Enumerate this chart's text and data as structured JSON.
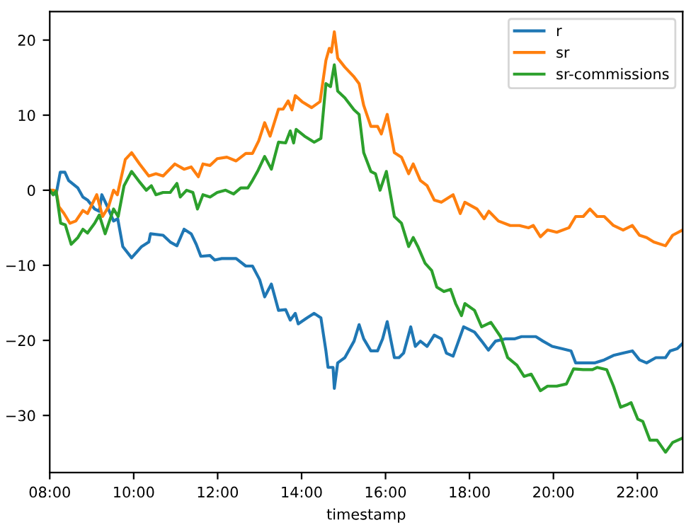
{
  "chart_data": {
    "type": "line",
    "xlabel": "timestamp",
    "legend": "top right",
    "grid": false,
    "xlim": [
      8,
      23.08
    ],
    "ylim": [
      -37.6,
      23.8
    ],
    "xticks": [
      {
        "value": 8,
        "label": "08:00"
      },
      {
        "value": 10,
        "label": "10:00"
      },
      {
        "value": 12,
        "label": "12:00"
      },
      {
        "value": 14,
        "label": "14:00"
      },
      {
        "value": 16,
        "label": "16:00"
      },
      {
        "value": 18,
        "label": "18:00"
      },
      {
        "value": 20,
        "label": "20:00"
      },
      {
        "value": 22,
        "label": "22:00"
      }
    ],
    "yticks": [
      -30,
      -20,
      -10,
      0,
      10,
      20
    ],
    "series": [
      {
        "name": "r",
        "color": "#1f77b4",
        "x": [
          8.0,
          8.15,
          8.25,
          8.36,
          8.45,
          8.67,
          8.79,
          8.9,
          9.07,
          9.18,
          9.24,
          9.35,
          9.52,
          9.62,
          9.74,
          9.95,
          10.19,
          10.36,
          10.4,
          10.7,
          10.87,
          11.03,
          11.2,
          11.37,
          11.49,
          11.6,
          11.82,
          11.93,
          12.1,
          12.44,
          12.67,
          12.83,
          13.0,
          13.12,
          13.28,
          13.45,
          13.62,
          13.73,
          13.85,
          13.92,
          14.13,
          14.3,
          14.46,
          14.58,
          14.63,
          14.75,
          14.78,
          14.86,
          15.03,
          15.25,
          15.37,
          15.48,
          15.65,
          15.81,
          15.93,
          16.04,
          16.21,
          16.32,
          16.43,
          16.6,
          16.71,
          16.83,
          16.99,
          17.16,
          17.33,
          17.45,
          17.61,
          17.86,
          18.12,
          18.29,
          18.45,
          18.62,
          18.85,
          19.07,
          19.24,
          19.41,
          19.58,
          19.75,
          19.97,
          20.2,
          20.42,
          20.53,
          20.76,
          20.98,
          21.21,
          21.43,
          21.66,
          21.88,
          22.05,
          22.22,
          22.44,
          22.67,
          22.78,
          22.95,
          23.08
        ],
        "values": [
          0,
          -0.6,
          2.4,
          2.4,
          1.3,
          0.3,
          -0.9,
          -1.3,
          -2.5,
          -2.8,
          -0.6,
          -1.9,
          -4.1,
          -3.8,
          -7.5,
          -9.0,
          -7.5,
          -6.9,
          -5.8,
          -6.0,
          -6.9,
          -7.4,
          -5.2,
          -5.8,
          -7.2,
          -8.8,
          -8.7,
          -9.3,
          -9.1,
          -9.1,
          -10.1,
          -10.1,
          -11.9,
          -14.2,
          -12.5,
          -16.0,
          -15.9,
          -17.3,
          -16.4,
          -17.8,
          -17.0,
          -16.4,
          -17.0,
          -21.4,
          -23.6,
          -23.6,
          -26.4,
          -23.0,
          -22.3,
          -20.1,
          -17.9,
          -19.8,
          -21.4,
          -21.4,
          -19.8,
          -17.5,
          -22.3,
          -22.3,
          -21.7,
          -18.2,
          -20.8,
          -20.1,
          -20.8,
          -19.3,
          -19.8,
          -21.7,
          -22.1,
          -18.2,
          -18.9,
          -20.1,
          -21.3,
          -20.1,
          -19.8,
          -19.8,
          -19.5,
          -19.5,
          -19.5,
          -20.1,
          -20.8,
          -21.1,
          -21.4,
          -23.0,
          -23.0,
          -23.0,
          -22.6,
          -22.0,
          -21.7,
          -21.4,
          -22.6,
          -23.0,
          -22.3,
          -22.3,
          -21.4,
          -21.1,
          -20.4
        ]
      },
      {
        "name": "sr",
        "color": "#ff7f0e",
        "x": [
          8.0,
          8.08,
          8.15,
          8.22,
          8.34,
          8.48,
          8.62,
          8.79,
          8.9,
          9.12,
          9.26,
          9.4,
          9.52,
          9.61,
          9.8,
          9.95,
          10.14,
          10.36,
          10.53,
          10.7,
          10.98,
          11.2,
          11.37,
          11.54,
          11.65,
          11.82,
          11.99,
          12.22,
          12.44,
          12.67,
          12.83,
          12.98,
          13.12,
          13.25,
          13.45,
          13.56,
          13.68,
          13.77,
          13.85,
          14.01,
          14.24,
          14.44,
          14.58,
          14.66,
          14.71,
          14.78,
          14.86,
          15.03,
          15.25,
          15.37,
          15.48,
          15.65,
          15.81,
          15.9,
          16.04,
          16.21,
          16.38,
          16.55,
          16.66,
          16.83,
          16.99,
          17.16,
          17.33,
          17.61,
          17.78,
          17.89,
          18.18,
          18.35,
          18.46,
          18.69,
          18.97,
          19.19,
          19.41,
          19.52,
          19.69,
          19.86,
          20.08,
          20.37,
          20.53,
          20.71,
          20.87,
          21.04,
          21.21,
          21.43,
          21.66,
          21.88,
          22.05,
          22.22,
          22.39,
          22.67,
          22.84,
          23.08
        ],
        "values": [
          0,
          0,
          -0.1,
          -2.2,
          -3.1,
          -4.4,
          -4.1,
          -2.7,
          -3.1,
          -0.6,
          -3.5,
          -2.2,
          0,
          -0.6,
          4.1,
          5.0,
          3.5,
          1.9,
          2.2,
          1.9,
          3.5,
          2.8,
          3.1,
          1.8,
          3.5,
          3.3,
          4.2,
          4.4,
          3.9,
          4.9,
          4.9,
          6.6,
          9.0,
          7.2,
          10.8,
          10.8,
          11.9,
          10.7,
          12.6,
          11.8,
          11.0,
          11.8,
          17.3,
          18.9,
          18.4,
          21.1,
          17.6,
          16.4,
          15.1,
          14.2,
          11.3,
          8.5,
          8.5,
          7.5,
          10.1,
          5.0,
          4.4,
          2.2,
          3.5,
          1.3,
          0.6,
          -1.3,
          -1.6,
          -0.6,
          -3.1,
          -1.6,
          -2.5,
          -3.8,
          -2.8,
          -4.1,
          -4.7,
          -4.7,
          -5.0,
          -4.7,
          -6.2,
          -5.3,
          -5.6,
          -5.0,
          -3.5,
          -3.5,
          -2.5,
          -3.5,
          -3.5,
          -4.7,
          -5.3,
          -4.7,
          -6.0,
          -6.3,
          -6.9,
          -7.4,
          -6.0,
          -5.3
        ]
      },
      {
        "name": "sr-commissions",
        "color": "#2ca02c",
        "x": [
          8.0,
          8.08,
          8.15,
          8.26,
          8.37,
          8.51,
          8.67,
          8.79,
          8.9,
          9.07,
          9.18,
          9.32,
          9.52,
          9.63,
          9.77,
          9.95,
          10.14,
          10.3,
          10.42,
          10.53,
          10.7,
          10.87,
          11.03,
          11.11,
          11.26,
          11.41,
          11.52,
          11.65,
          11.82,
          11.99,
          12.19,
          12.38,
          12.55,
          12.72,
          12.83,
          12.95,
          13.12,
          13.28,
          13.45,
          13.62,
          13.73,
          13.81,
          13.87,
          14.07,
          14.3,
          14.46,
          14.58,
          14.69,
          14.78,
          14.86,
          15.03,
          15.25,
          15.37,
          15.48,
          15.65,
          15.76,
          15.87,
          16.02,
          16.21,
          16.38,
          16.55,
          16.66,
          16.77,
          16.94,
          17.1,
          17.22,
          17.39,
          17.55,
          17.67,
          17.81,
          17.89,
          18.12,
          18.29,
          18.51,
          18.74,
          18.91,
          19.13,
          19.3,
          19.47,
          19.69,
          19.86,
          20.08,
          20.31,
          20.48,
          20.71,
          20.93,
          21.04,
          21.27,
          21.43,
          21.6,
          21.74,
          21.85,
          22.01,
          22.13,
          22.3,
          22.47,
          22.67,
          22.84,
          23.08
        ],
        "values": [
          0,
          -0.6,
          -0.1,
          -4.4,
          -4.6,
          -7.2,
          -6.3,
          -5.2,
          -5.7,
          -4.4,
          -3.3,
          -5.8,
          -2.5,
          -3.5,
          0.6,
          2.5,
          1.1,
          0,
          0.6,
          -0.6,
          -0.3,
          -0.3,
          0.9,
          -0.9,
          0,
          -0.3,
          -2.5,
          -0.6,
          -0.9,
          -0.3,
          0,
          -0.5,
          0.3,
          0.3,
          1.3,
          2.5,
          4.5,
          2.8,
          6.4,
          6.3,
          7.9,
          6.3,
          8.1,
          7.2,
          6.4,
          6.9,
          14.2,
          13.8,
          16.7,
          13.2,
          12.3,
          10.7,
          10.1,
          5.0,
          2.5,
          2.2,
          0,
          2.5,
          -3.5,
          -4.4,
          -7.5,
          -6.3,
          -7.5,
          -9.7,
          -10.7,
          -12.9,
          -13.5,
          -13.2,
          -15.1,
          -16.7,
          -15.1,
          -16.0,
          -18.2,
          -17.6,
          -19.5,
          -22.3,
          -23.3,
          -24.8,
          -24.5,
          -26.7,
          -26.1,
          -26.1,
          -25.8,
          -23.8,
          -23.9,
          -23.9,
          -23.6,
          -23.9,
          -26.1,
          -28.9,
          -28.6,
          -28.3,
          -30.5,
          -30.8,
          -33.3,
          -33.3,
          -34.9,
          -33.6,
          -33.0
        ]
      }
    ]
  }
}
